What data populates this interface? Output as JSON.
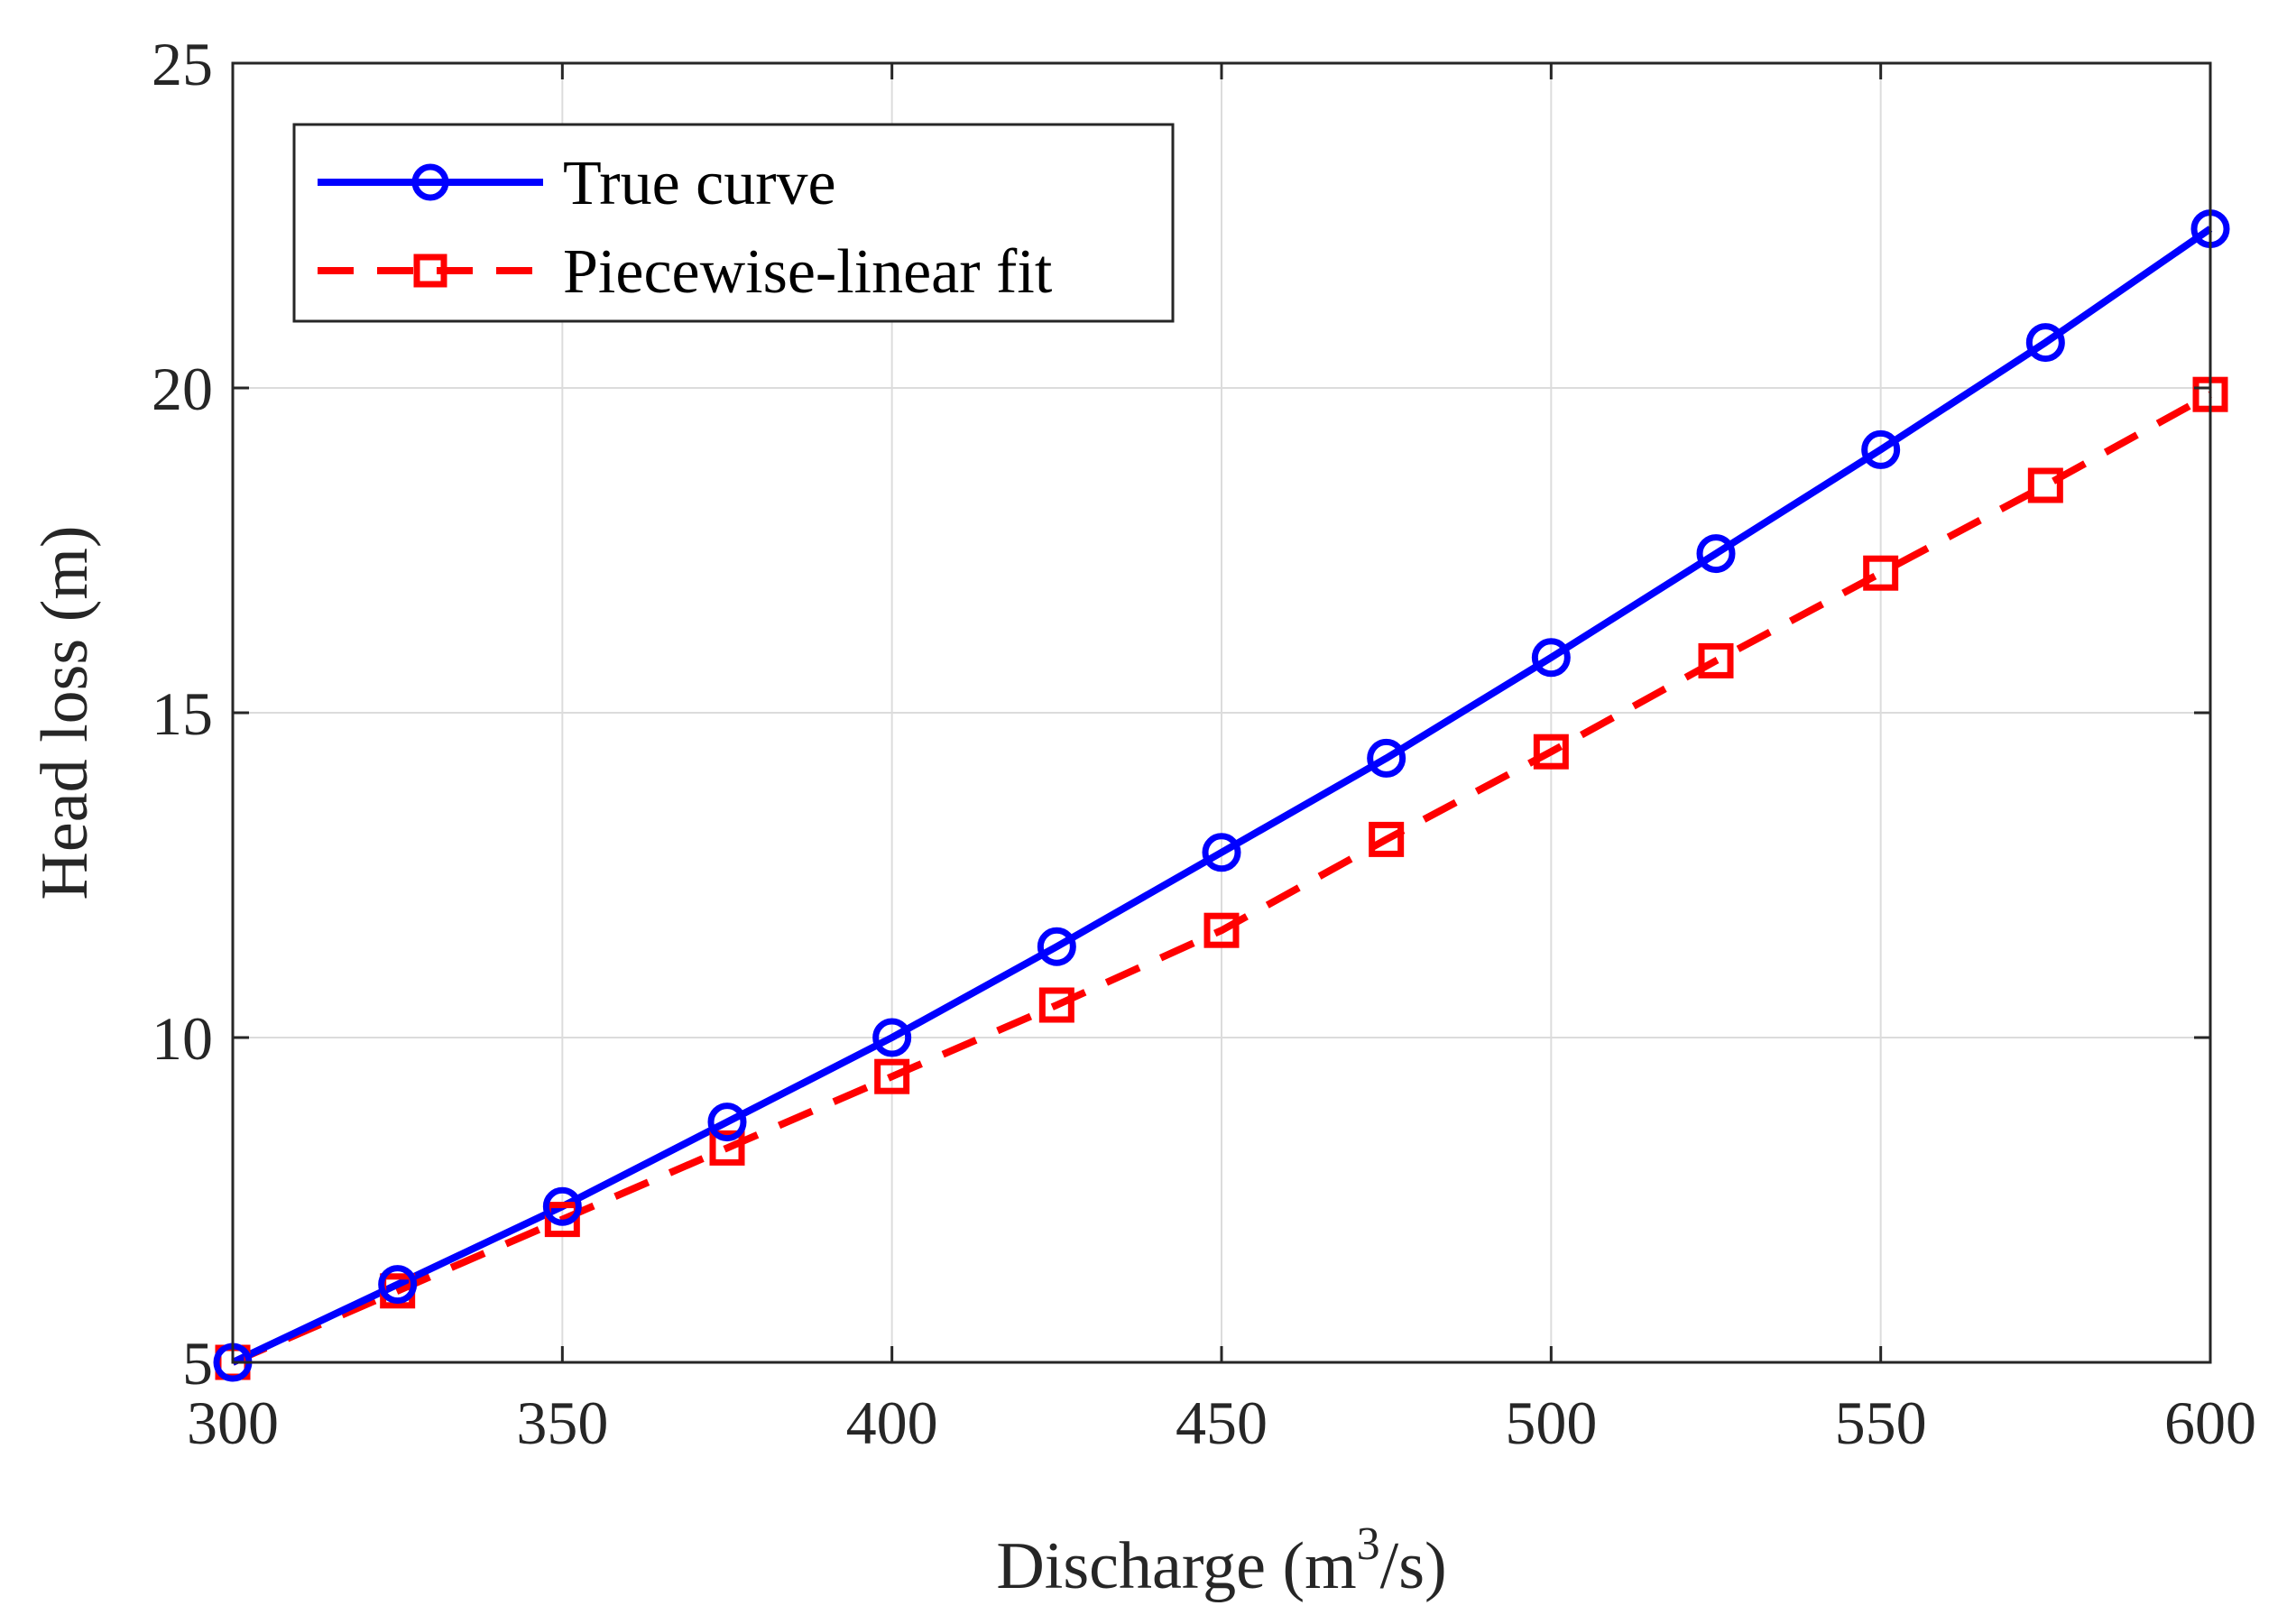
{
  "chart_data": {
    "type": "line",
    "title": "",
    "xlabel": "Discharge (m",
    "xlabel_superscript": "3",
    "xlabel_suffix": "/s)",
    "ylabel": "Head loss (m)",
    "xlim": [
      300,
      600
    ],
    "ylim": [
      5,
      25
    ],
    "xticks": [
      300,
      350,
      400,
      450,
      500,
      550,
      600
    ],
    "yticks": [
      5,
      10,
      15,
      20,
      25
    ],
    "grid": true,
    "legend_position": "top-left",
    "x": [
      300,
      325,
      350,
      375,
      400,
      425,
      450,
      475,
      500,
      525,
      550,
      575,
      600
    ],
    "series": [
      {
        "name": "True curve",
        "color": "#0000ff",
        "line_style": "solid",
        "marker": "circle",
        "values": [
          5.0,
          6.2,
          7.4,
          8.7,
          10.0,
          11.4,
          12.85,
          14.3,
          15.85,
          17.45,
          19.05,
          20.7,
          22.45
        ]
      },
      {
        "name": "Piecewise-linear fit",
        "color": "#ff0000",
        "line_style": "dashed",
        "marker": "square",
        "values": [
          5.0,
          6.1,
          7.2,
          8.3,
          9.4,
          10.5,
          11.65,
          13.05,
          14.4,
          15.8,
          17.15,
          18.5,
          19.9
        ]
      }
    ]
  }
}
